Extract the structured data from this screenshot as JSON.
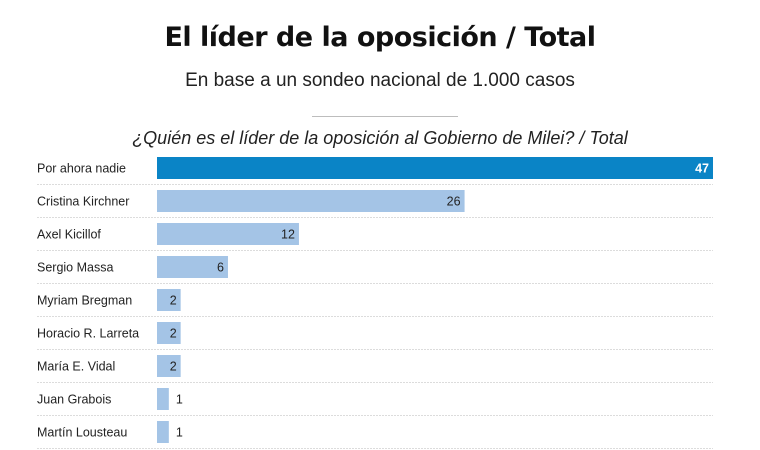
{
  "header": {
    "title": "El líder de la oposición / Total",
    "subtitle": "En base a un sondeo nacional de 1.000 casos"
  },
  "chart_data": {
    "type": "bar",
    "orientation": "horizontal",
    "title": "¿Quién es el líder de la oposición al Gobierno de Milei? / Total",
    "categories": [
      "Por ahora nadie",
      "Cristina Kirchner",
      "Axel Kicillof",
      "Sergio Massa",
      "Myriam Bregman",
      "Horacio R. Larreta",
      "María E. Vidal",
      "Juan Grabois",
      "Martín Lousteau"
    ],
    "values": [
      47,
      26,
      12,
      6,
      2,
      2,
      2,
      1,
      1
    ],
    "xlim": [
      0,
      47
    ],
    "xlabel": "",
    "ylabel": "",
    "colors": {
      "highlight": "#0a84c6",
      "default": "#a4c4e6",
      "highlight_text": "#ffffff",
      "default_text": "#222222",
      "separator": "#dcdcdc"
    }
  }
}
